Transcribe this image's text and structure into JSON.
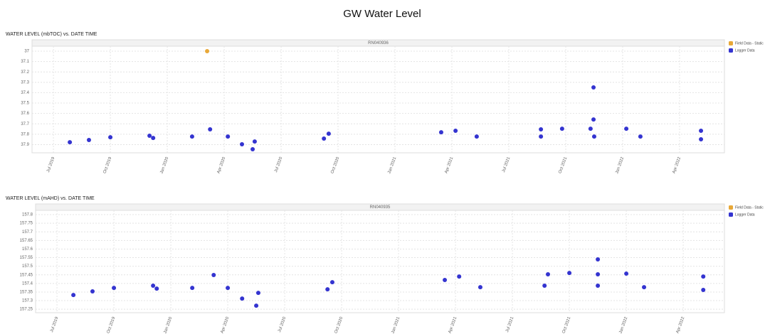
{
  "title": "GW Water Level",
  "chart_data": [
    {
      "type": "scatter",
      "title": "WATER LEVEL (mbTOC) vs. DATE TIME",
      "subtitle": "RN040936",
      "xlim": [
        2019.406,
        2022.447
      ],
      "ylim": [
        36.952,
        37.979
      ],
      "y_inverted": true,
      "grid": true,
      "legend": "right",
      "xticks": [
        {
          "value": 2019.5,
          "label": "Jul 2019"
        },
        {
          "value": 2019.75,
          "label": "Oct 2019"
        },
        {
          "value": 2020.0,
          "label": "Jan 2020"
        },
        {
          "value": 2020.25,
          "label": "Apr 2020"
        },
        {
          "value": 2020.5,
          "label": "Jul 2020"
        },
        {
          "value": 2020.75,
          "label": "Oct 2020"
        },
        {
          "value": 2021.0,
          "label": "Jan 2021"
        },
        {
          "value": 2021.25,
          "label": "Apr 2021"
        },
        {
          "value": 2021.5,
          "label": "Jul 2021"
        },
        {
          "value": 2021.75,
          "label": "Oct 2021"
        },
        {
          "value": 2022.0,
          "label": "Jan 2022"
        },
        {
          "value": 2022.25,
          "label": "Apr 2022"
        }
      ],
      "yticks": [
        37,
        37.1,
        37.2,
        37.3,
        37.4,
        37.5,
        37.6,
        37.7,
        37.8,
        37.9
      ],
      "series": [
        {
          "name": "Field Data - Static",
          "color": "#e8a838",
          "x": [
            2020.175
          ],
          "values": [
            37.0
          ]
        },
        {
          "name": "Logger Data",
          "color": "#3434d0",
          "x": [
            2019.572,
            2019.656,
            2019.75,
            2019.922,
            2019.938,
            2020.109,
            2020.188,
            2020.266,
            2020.328,
            2020.375,
            2020.384,
            2020.688,
            2020.709,
            2021.203,
            2021.266,
            2021.641,
            2021.734,
            2021.859,
            2022.016,
            2022.344,
            2021.872,
            2021.872,
            2021.359,
            2021.641,
            2021.875,
            2022.078,
            2022.344
          ],
          "values": [
            37.877,
            37.856,
            37.829,
            37.815,
            37.836,
            37.822,
            37.753,
            37.822,
            37.897,
            37.945,
            37.87,
            37.842,
            37.795,
            37.781,
            37.767,
            37.753,
            37.747,
            37.747,
            37.747,
            37.767,
            37.349,
            37.658,
            37.822,
            37.822,
            37.822,
            37.822,
            37.849
          ]
        }
      ]
    },
    {
      "type": "scatter",
      "title": "WATER LEVEL (mAHD) vs. DATE TIME",
      "subtitle": "RN040935",
      "xlim": [
        2019.406,
        2022.431
      ],
      "ylim": [
        157.23,
        157.825
      ],
      "grid": true,
      "legend": "right",
      "xticks": [
        {
          "value": 2019.5,
          "label": "Jul 2019"
        },
        {
          "value": 2019.75,
          "label": "Oct 2019"
        },
        {
          "value": 2020.0,
          "label": "Jan 2020"
        },
        {
          "value": 2020.25,
          "label": "Apr 2020"
        },
        {
          "value": 2020.5,
          "label": "Jul 2020"
        },
        {
          "value": 2020.75,
          "label": "Oct 2020"
        },
        {
          "value": 2021.0,
          "label": "Jan 2021"
        },
        {
          "value": 2021.25,
          "label": "Apr 2021"
        },
        {
          "value": 2021.5,
          "label": "Jul 2021"
        },
        {
          "value": 2021.75,
          "label": "Oct 2021"
        },
        {
          "value": 2022.0,
          "label": "Jan 2022"
        },
        {
          "value": 2022.25,
          "label": "Apr 2022"
        }
      ],
      "yticks": [
        157.8,
        157.75,
        157.7,
        157.65,
        157.6,
        157.55,
        157.5,
        157.45,
        157.4,
        157.35,
        157.3,
        157.25
      ],
      "series": [
        {
          "name": "Field Data - Static",
          "color": "#e8a838",
          "x": [],
          "values": []
        },
        {
          "name": "Logger Data",
          "color": "#3434d0",
          "x": [
            2019.572,
            2019.656,
            2019.75,
            2019.922,
            2019.938,
            2020.094,
            2020.188,
            2020.25,
            2020.313,
            2020.375,
            2020.384,
            2020.688,
            2020.709,
            2021.203,
            2021.266,
            2021.656,
            2021.75,
            2021.875,
            2022.0,
            2022.338,
            2021.875,
            2021.359,
            2021.641,
            2021.875,
            2022.078,
            2022.338
          ],
          "values": [
            157.333,
            157.354,
            157.374,
            157.387,
            157.37,
            157.374,
            157.449,
            157.374,
            157.312,
            157.271,
            157.345,
            157.366,
            157.407,
            157.42,
            157.44,
            157.453,
            157.461,
            157.453,
            157.457,
            157.44,
            157.54,
            157.378,
            157.387,
            157.387,
            157.378,
            157.362
          ]
        }
      ]
    }
  ]
}
